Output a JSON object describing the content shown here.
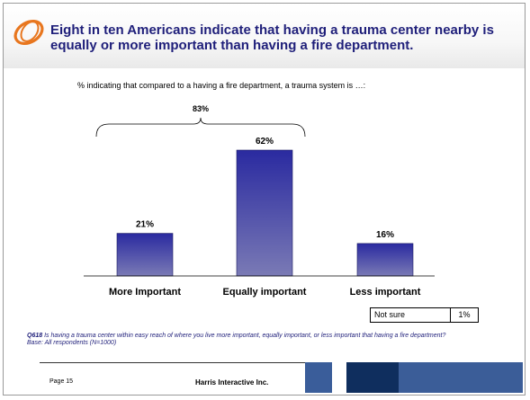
{
  "header": {
    "title": "Eight in ten Americans indicate that having a trauma center nearby is equally or more important than having a fire department."
  },
  "subtitle": "% indicating that compared to a having a fire department, a trauma system is …:",
  "chart_data": {
    "type": "bar",
    "categories": [
      "More Important",
      "Equally important",
      "Less important"
    ],
    "values": [
      21,
      62,
      16
    ],
    "value_labels": [
      "21%",
      "62%",
      "16%"
    ],
    "ylim": [
      0,
      62
    ],
    "bracket": {
      "label": "83%",
      "spans": [
        "More Important",
        "Equally important"
      ]
    },
    "bar_color_top": "#2a2aa0",
    "bar_color_bottom": "#7a7ab5"
  },
  "not_sure": {
    "label": "Not sure",
    "value": "1%"
  },
  "footnote": {
    "question_id": "Q618",
    "question": " Is having a trauma center within easy reach of where you live more important, equally important, or less important that having a fire department?",
    "base": "Base:   All respondents (N=1000)"
  },
  "footer": {
    "page": "Page 15",
    "company": "Harris Interactive Inc."
  },
  "colors": {
    "title": "#1f1f7a",
    "logo": "#e8761e",
    "footer_dark": "#0f2e5e",
    "footer_mid": "#3b5d98"
  }
}
